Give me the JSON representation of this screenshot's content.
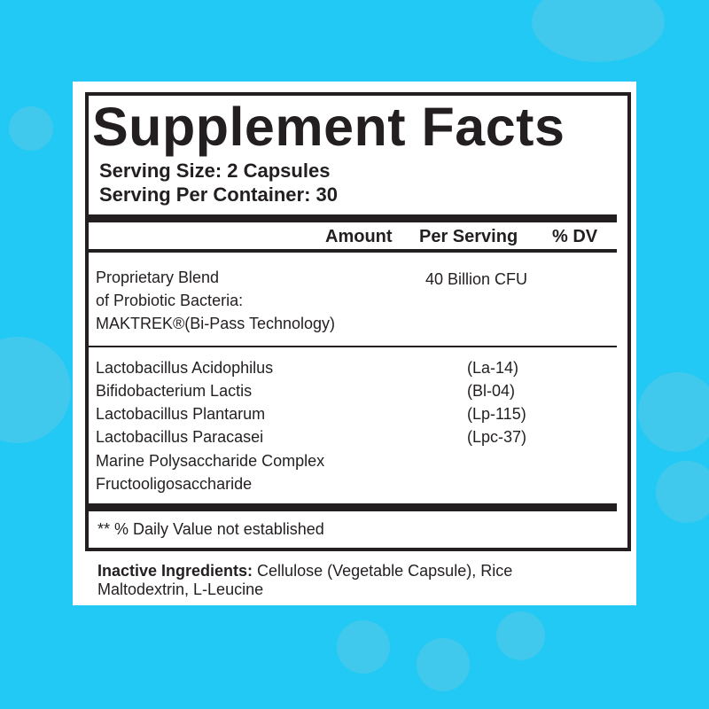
{
  "title": "Supplement Facts",
  "serving_size": "Serving Size: 2 Capsules",
  "servings_per_container": "Serving Per Container: 30",
  "columns": {
    "amount": "Amount",
    "per_serving": "Per Serving",
    "dv": "% DV"
  },
  "blend": {
    "lines": [
      "Proprietary Blend",
      "of Probiotic Bacteria:",
      "MAKTREK®(Bi-Pass Technology)"
    ],
    "amount": "40 Billion CFU"
  },
  "ingredients": [
    {
      "name": "Lactobacillus Acidophilus",
      "strain": "(La-14)"
    },
    {
      "name": "Bifidobacterium Lactis",
      "strain": "(Bl-04)"
    },
    {
      "name": "Lactobacillus Plantarum",
      "strain": "(Lp-115)"
    },
    {
      "name": "Lactobacillus Paracasei",
      "strain": "(Lpc-37)"
    },
    {
      "name": "Marine Polysaccharide Complex",
      "strain": ""
    },
    {
      "name": "Fructooligosaccharide",
      "strain": ""
    }
  ],
  "footnote": "** % Daily Value not established",
  "inactive": {
    "label": "Inactive Ingredients:",
    "text_line1": " Cellulose (Vegetable Capsule), Rice",
    "text_line2": "Maltodextrin, L-Leucine"
  },
  "colors": {
    "background": "#22c9f4",
    "ink": "#231f20"
  }
}
